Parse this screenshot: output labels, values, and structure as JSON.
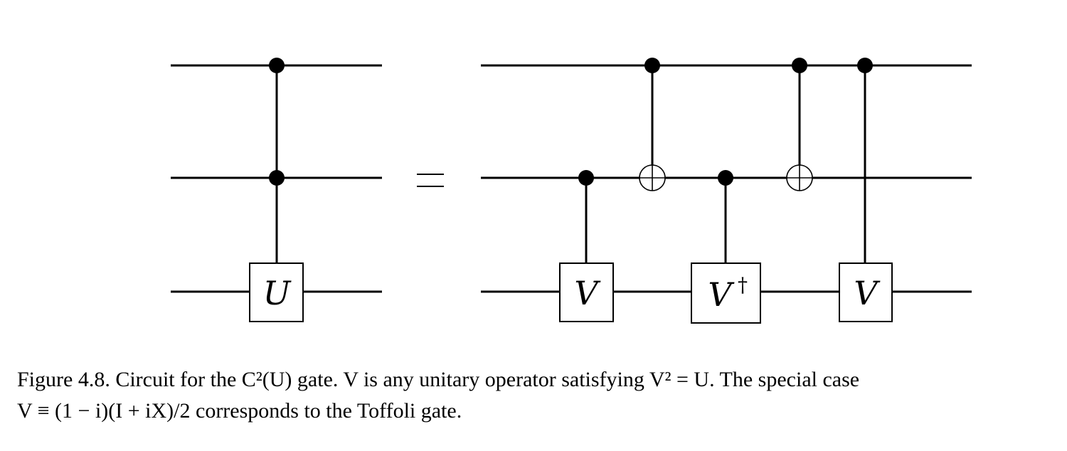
{
  "diagram": {
    "left_gate_label": "U",
    "right_gate_labels": [
      "V",
      "V",
      "V"
    ],
    "dagger_symbol": "†",
    "equals_symbol": "="
  },
  "caption": {
    "line1": "Figure 4.8. Circuit for the C²(U) gate. V is any unitary operator satisfying V² = U. The special case",
    "line2": "V ≡ (1 − i)(I + iX)/2 corresponds to the Toffoli gate."
  }
}
